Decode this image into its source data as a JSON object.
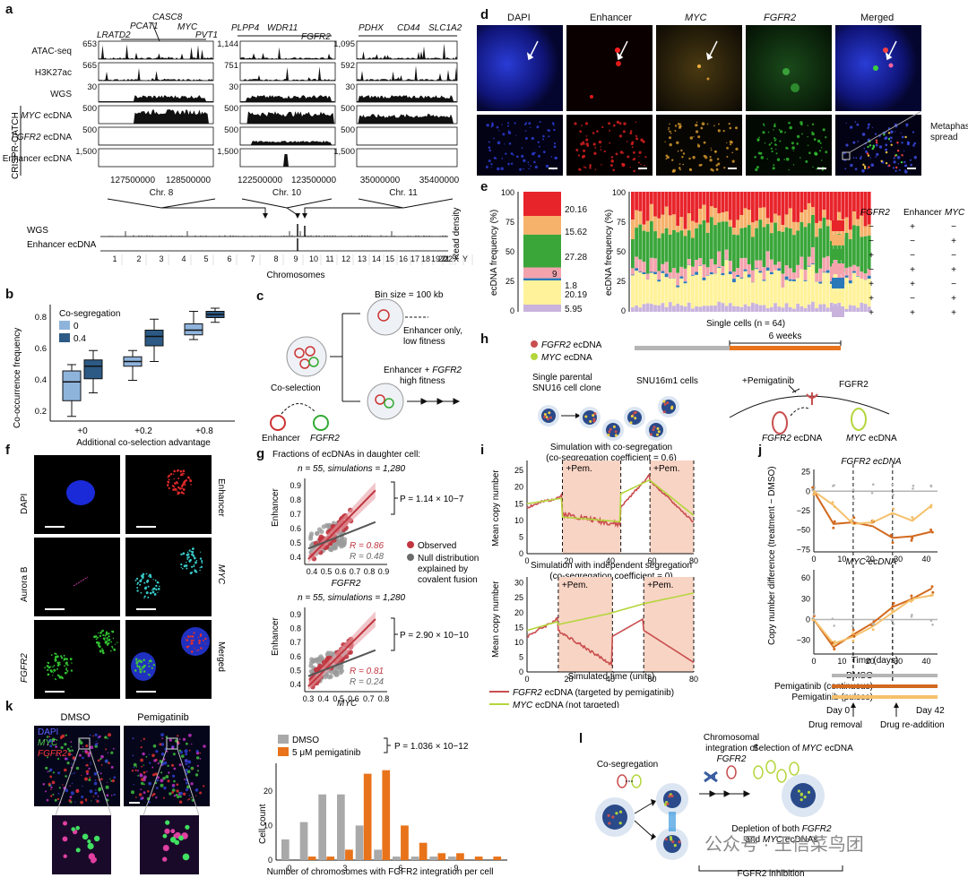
{
  "panel_labels": [
    "a",
    "b",
    "c",
    "d",
    "e",
    "f",
    "g",
    "h",
    "i",
    "j",
    "k",
    "l"
  ],
  "a": {
    "genes_chr8": [
      "LRATD2",
      "PCAT1",
      "CASC8",
      "MYC",
      "PVT1"
    ],
    "genes_chr10": [
      "PLPP4",
      "WDR11",
      "FGFR2"
    ],
    "genes_chr11": [
      "PDHX",
      "CD44",
      "SLC1A2"
    ],
    "tracks": [
      {
        "label": "ATAC-seq",
        "max": [
          "653",
          "1,144",
          "1,095"
        ]
      },
      {
        "label": "H3K27ac",
        "max": [
          "565",
          "751",
          "592"
        ]
      },
      {
        "label": "WGS",
        "max": [
          "30",
          "30",
          "30"
        ]
      },
      {
        "label": "MYC ecDNA",
        "max": [
          "500",
          "500",
          "500"
        ]
      },
      {
        "label": "FGFR2 ecDNA",
        "max": [
          "500",
          "500",
          "500"
        ]
      },
      {
        "label": "Enhancer ecDNA",
        "max": [
          "1,500",
          "1,500",
          "1,500"
        ]
      }
    ],
    "group_label": "CRISPR-CATCH",
    "coords_chr8": [
      "127500000",
      "128500000"
    ],
    "coords_chr10": [
      "122500000",
      "123500000"
    ],
    "coords_chr11": [
      "35000000",
      "35400000"
    ],
    "chr_names": [
      "Chr. 8",
      "Chr. 10",
      "Chr. 11"
    ],
    "genome_tracks": [
      "WGS",
      "Enhancer ecDNA"
    ],
    "read_density": "Read density",
    "chromosomes": [
      "1",
      "2",
      "3",
      "4",
      "5",
      "6",
      "7",
      "8",
      "9",
      "10",
      "11",
      "12",
      "13",
      "14",
      "15",
      "16",
      "17",
      "18",
      "19",
      "20",
      "21",
      "22",
      "X",
      "Y"
    ],
    "chromosomes_label": "Chromosomes",
    "bin_size": "Bin size = 100 kb"
  },
  "b": {
    "ylabel": "Co-occurrence frequency",
    "xlabel": "Additional co-selection advantage",
    "legend_title": "Co-segregation",
    "legend": [
      {
        "name": "0",
        "color": "#8fb4dc"
      },
      {
        "name": "0.4",
        "color": "#2c5a85"
      }
    ],
    "yticks": [
      "0.2",
      "0.4",
      "0.6",
      "0.8"
    ],
    "categories": [
      "+0",
      "+0.2",
      "+0.8"
    ]
  },
  "c": {
    "top": "Enhancer only,\nlow fitness",
    "bottom_a": "Enhancer + ",
    "bottom_b": "FGFR2",
    "bottom_c": "high fitness",
    "coselection": "Co-selection",
    "enhancer": "Enhancer",
    "fgfr2": "FGFR2"
  },
  "d": {
    "cols": [
      "DAPI",
      "Enhancer",
      "MYC",
      "FGFR2",
      "Merged"
    ],
    "side": "Metaphase spread"
  },
  "e": {
    "ylabel": "ecDNA frequency (%)",
    "yticks": [
      "0",
      "25",
      "50",
      "75",
      "100"
    ],
    "stack_values": [
      "20.16",
      "15.62",
      "27.28",
      "9",
      "1.8",
      "20.19",
      "5.95"
    ],
    "xlabel": "Single cells (n = 64)",
    "legend_head": [
      "FGFR2",
      "Enhancer",
      "MYC"
    ],
    "legend_rows": [
      {
        "color": "#e8242b",
        "v": [
          "−",
          "+",
          "−"
        ]
      },
      {
        "color": "#f6b26b",
        "v": [
          "−",
          "−",
          "+"
        ]
      },
      {
        "color": "#3aa63a",
        "v": [
          "+",
          "−",
          "−"
        ]
      },
      {
        "color": "#f4a3ad",
        "v": [
          "−",
          "+",
          "+"
        ]
      },
      {
        "color": "#2a78b8",
        "v": [
          "+",
          "+",
          "−"
        ]
      },
      {
        "color": "#fff29a",
        "v": [
          "+",
          "−",
          "+"
        ]
      },
      {
        "color": "#c9b3dd",
        "v": [
          "+",
          "+",
          "+"
        ]
      }
    ]
  },
  "f": {
    "labels": [
      "DAPI",
      "Enhancer",
      "Aurora B",
      "MYC",
      "FGFR2",
      "Merged"
    ]
  },
  "g": {
    "title": "Fractions of ecDNAs in daughter cell:",
    "stats1": "n = 55, simulations = 1,280",
    "stats2": "n = 55, simulations = 1,280",
    "p1": "P = 1.14 × 10−7",
    "p2": "P = 2.90 × 10−10",
    "r1_obs": "R = 0.86",
    "r1_null": "R = 0.48",
    "r2_obs": "R = 0.81",
    "r2_null": "R = 0.24",
    "ylabel": "Enhancer",
    "xlabel1": "FGFR2",
    "xlabel2": "MYC",
    "legend": [
      {
        "name": "Observed",
        "color": "#c0353f"
      },
      {
        "name": "Null distribution explained by covalent fusion",
        "color": "#6b6b6b"
      }
    ],
    "ticks1_y": [
      "0.4",
      "0.5",
      "0.6",
      "0.7",
      "0.8",
      "0.9"
    ],
    "ticks1_x": [
      "0.4",
      "0.5",
      "0.6",
      "0.7",
      "0.8",
      "0.9"
    ],
    "ticks2_y": [
      "0.4",
      "0.5",
      "0.6",
      "0.7",
      "0.8",
      "0.9"
    ],
    "ticks2_x": [
      "0.3",
      "0.4",
      "0.5",
      "0.6",
      "0.7",
      "0.8"
    ]
  },
  "h": {
    "legend": [
      {
        "name": "FGFR2 ecDNA",
        "color": "#c94e4e"
      },
      {
        "name": "MYC ecDNA",
        "color": "#b4d63c"
      }
    ],
    "weeks": "6 weeks",
    "clone": "Single parental\nSNU16 cell clone",
    "cells": "SNU16m1 cells",
    "pemi": "+Pemigatinib",
    "fgfr2": "FGFR2",
    "ec1": "FGFR2 ecDNA",
    "ec2": "MYC ecDNA"
  },
  "i": {
    "title1": "Simulation with co-segregation\n(co-segregation coefficient = 0.6)",
    "title2": "Simulation with independent segregation\n(co-segregation coefficient = 0)",
    "pem": "+Pem.",
    "ylabel": "Mean copy number",
    "xlabel": "Simulated time (units)",
    "yticks1": [
      "0",
      "5",
      "10",
      "15",
      "20",
      "25"
    ],
    "yticks2": [
      "0",
      "5",
      "10",
      "15",
      "20",
      "25",
      "30"
    ],
    "xticks": [
      "0",
      "20",
      "40",
      "60",
      "80"
    ],
    "legend": [
      {
        "name": "FGFR2 ecDNA (targeted by pemigatinib)",
        "color": "#c94e4e"
      },
      {
        "name": "MYC ecDNA (not targeted)",
        "color": "#b4d63c"
      }
    ]
  },
  "j": {
    "title1": "FGFR2 ecDNA",
    "title2": "MYC ecDNA",
    "ylabel": "Copy number difference (treatment − DMSO)",
    "xlabel": "Time (days)",
    "yticks1": [
      "25",
      "0",
      "−25",
      "−50",
      "−75"
    ],
    "yticks2": [
      "60",
      "30",
      "0",
      "−30"
    ],
    "xticks": [
      "0",
      "10",
      "20",
      "30",
      "40"
    ],
    "legend": [
      {
        "name": "DMSO",
        "color": "#b5b5b5"
      },
      {
        "name": "Pemigatinib (continuous)",
        "color": "#d2691e"
      },
      {
        "name": "Pemigatinib (pulses)",
        "color": "#f5c16c"
      }
    ],
    "day0": "Day 0",
    "day42": "Day 42",
    "removal": "Drug removal",
    "readd": "Drug re-addition"
  },
  "k": {
    "cols": [
      "DMSO",
      "Pemigatinib"
    ],
    "channels": [
      {
        "name": "DAPI",
        "color": "#5a62ff"
      },
      {
        "name": "MYC",
        "color": "#4fd04f"
      },
      {
        "name": "FGFR2",
        "color": "#ff3b3b"
      }
    ],
    "legend": [
      {
        "name": "DMSO",
        "color": "#a9a9a9"
      },
      {
        "name": "5 μM pemigatinib",
        "color": "#e8731a"
      }
    ],
    "p": "P = 1.036 × 10−12",
    "ylabel": "Cell count",
    "xlabel": "Number of chromosomes with FGFR2 integration per cell",
    "yticks": [
      "0",
      "10",
      "20"
    ],
    "xticks": [
      "0",
      "3",
      "6",
      "9"
    ],
    "chart_data": {
      "type": "bar",
      "categories": [
        0,
        1,
        2,
        3,
        4,
        5,
        6,
        7,
        8,
        9,
        10,
        11
      ],
      "series": [
        {
          "name": "DMSO",
          "values": [
            6,
            11,
            19,
            19,
            10,
            3,
            1,
            1,
            1,
            1,
            0,
            0
          ]
        },
        {
          "name": "5 μM pemigatinib",
          "values": [
            0,
            1,
            1,
            3,
            25,
            26,
            10,
            5,
            2,
            2,
            1,
            1
          ]
        }
      ],
      "ylim": [
        0,
        28
      ]
    }
  },
  "l": {
    "coseg": "Co-segregation",
    "chrom": "Chromosomal\nintegration of\nFGFR2",
    "select": "Selection of MYC ecDNA",
    "depletion": "Depletion of both FGFR2\nand MYC ecDNAs",
    "inhib": "FGFR2 inhibition"
  },
  "watermark": "公众号 · 王信菜鸟团"
}
